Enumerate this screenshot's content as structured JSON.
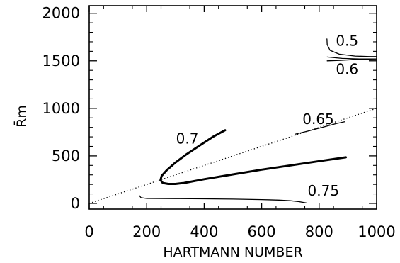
{
  "chart_data": {
    "type": "line",
    "xlabel": "HARTMANN  NUMBER",
    "ylabel": "R̄m",
    "xlim": [
      0,
      1000
    ],
    "ylim": [
      -60,
      2080
    ],
    "xticks": [
      "0",
      "200",
      "400",
      "600",
      "800",
      "1000"
    ],
    "xtick_values": [
      0,
      200,
      400,
      600,
      800,
      1000
    ],
    "yticks": [
      "0",
      "500",
      "1000",
      "1500",
      "2000"
    ],
    "ytick_values": [
      0,
      500,
      1000,
      1500,
      2000
    ],
    "grid": false,
    "series": [
      {
        "name": "0.5",
        "style": "thin",
        "points": [
          [
            827,
            1730
          ],
          [
            828,
            1670
          ],
          [
            838,
            1610
          ],
          [
            870,
            1570
          ],
          [
            925,
            1550
          ],
          [
            975,
            1545
          ],
          [
            1000,
            1545
          ]
        ]
      },
      {
        "name": "0.6",
        "style": "thin",
        "points": [
          [
            828,
            1540
          ],
          [
            880,
            1525
          ],
          [
            940,
            1520
          ],
          [
            1000,
            1520
          ]
        ]
      },
      {
        "name": "0.6",
        "style": "thin",
        "points": [
          [
            828,
            1500
          ],
          [
            875,
            1505
          ],
          [
            930,
            1515
          ],
          [
            1000,
            1520
          ]
        ]
      },
      {
        "name": "0.65",
        "style": "thin",
        "points": [
          [
            718,
            730
          ],
          [
            760,
            760
          ],
          [
            810,
            800
          ],
          [
            860,
            840
          ],
          [
            890,
            860
          ]
        ]
      },
      {
        "name": "0.7",
        "style": "thick",
        "points": [
          [
            473,
            770
          ],
          [
            430,
            700
          ],
          [
            390,
            620
          ],
          [
            340,
            520
          ],
          [
            300,
            430
          ],
          [
            270,
            350
          ],
          [
            252,
            290
          ],
          [
            248,
            245
          ],
          [
            256,
            215
          ],
          [
            275,
            205
          ],
          [
            300,
            205
          ],
          [
            330,
            215
          ],
          [
            400,
            255
          ],
          [
            500,
            305
          ],
          [
            600,
            355
          ],
          [
            700,
            400
          ],
          [
            800,
            445
          ],
          [
            893,
            485
          ]
        ]
      },
      {
        "name": "0.75",
        "style": "thin",
        "points": [
          [
            175,
            80
          ],
          [
            180,
            60
          ],
          [
            200,
            52
          ],
          [
            300,
            50
          ],
          [
            400,
            48
          ],
          [
            500,
            45
          ],
          [
            600,
            40
          ],
          [
            660,
            35
          ],
          [
            700,
            28
          ],
          [
            730,
            18
          ],
          [
            755,
            5
          ]
        ]
      },
      {
        "name": "",
        "style": "dotted",
        "points": [
          [
            0,
            0
          ],
          [
            1000,
            1000
          ]
        ]
      }
    ],
    "annotations": [
      {
        "text": "0.5",
        "x": 858,
        "y": 1660
      },
      {
        "text": "0.6",
        "x": 858,
        "y": 1360
      },
      {
        "text": "0.65",
        "x": 742,
        "y": 835
      },
      {
        "text": "0.7",
        "x": 302,
        "y": 630
      },
      {
        "text": "0.75",
        "x": 760,
        "y": 80
      }
    ]
  }
}
